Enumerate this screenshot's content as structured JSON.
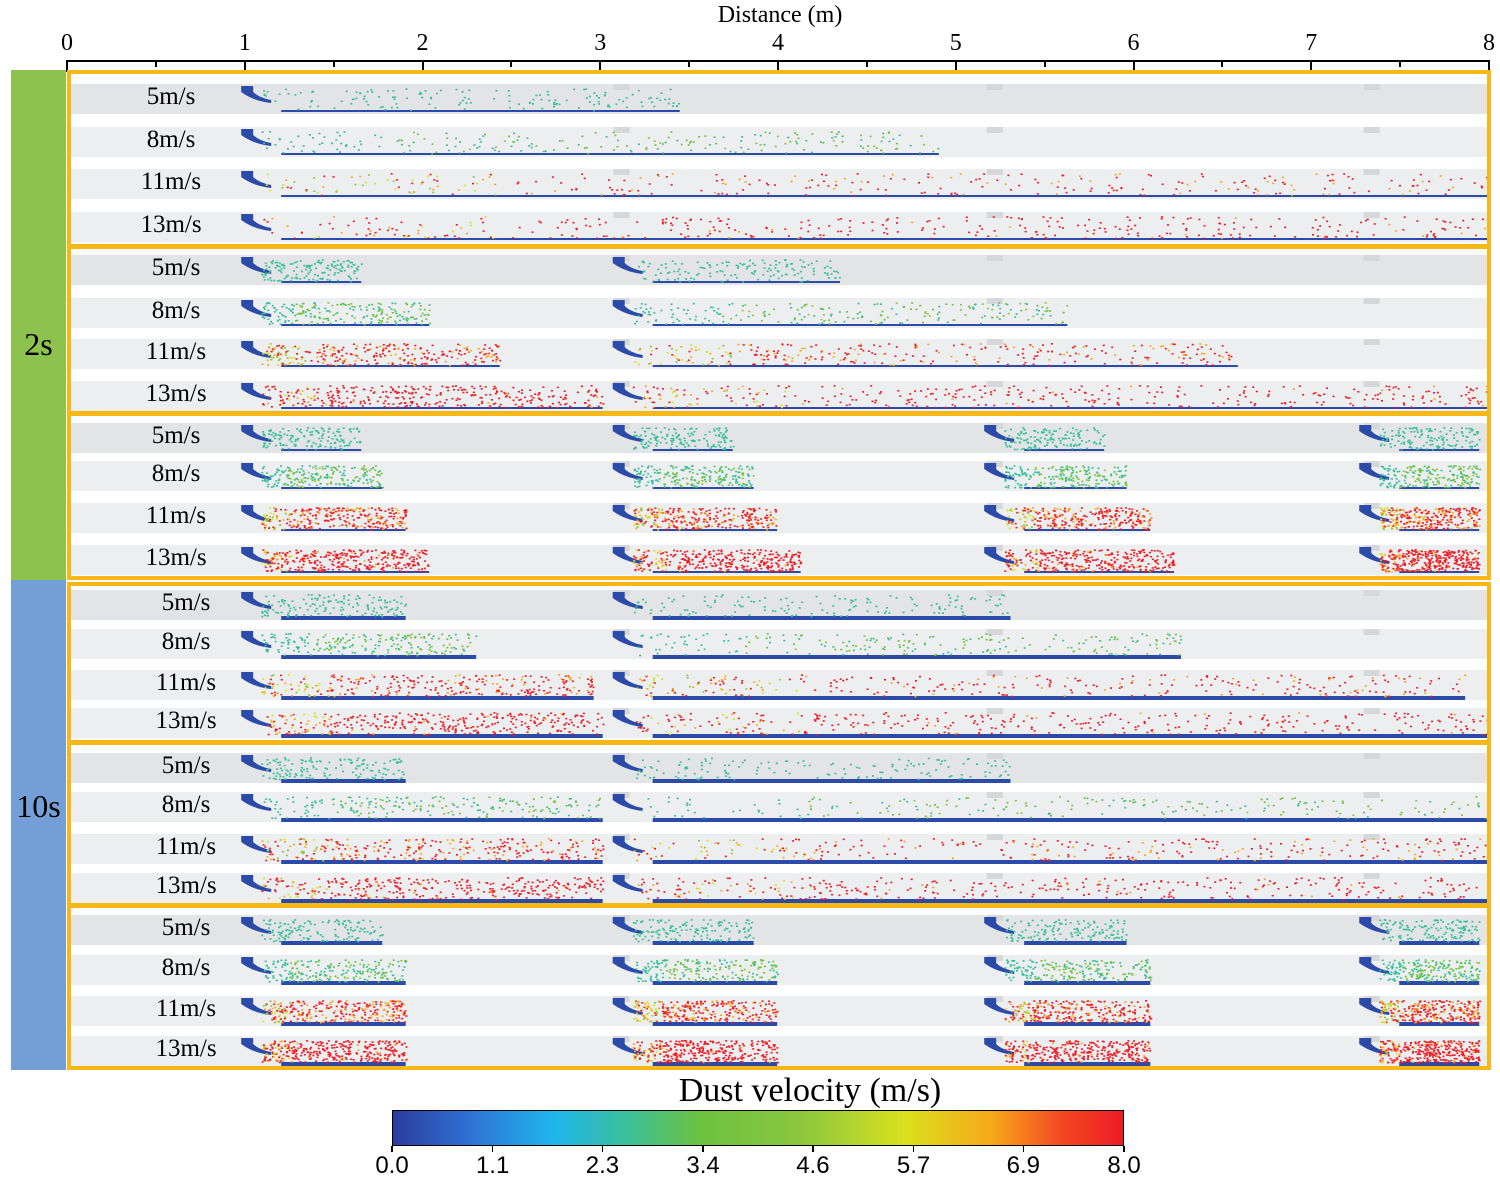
{
  "axis": {
    "title": "Distance (m)",
    "ticks": [
      "0",
      "1",
      "2",
      "3",
      "4",
      "5",
      "6",
      "7",
      "8"
    ],
    "range": [
      0,
      8
    ]
  },
  "time_groups": [
    {
      "label": "2s",
      "color": "#8dc24f"
    },
    {
      "label": "10s",
      "color": "#739fd6"
    }
  ],
  "box_color": "#f7b716",
  "row_labels": [
    "5m/s",
    "8m/s",
    "11m/s",
    "13m/s",
    "5m/s",
    "8m/s",
    "11m/s",
    "13m/s",
    "5m/s",
    "8m/s",
    "11m/s",
    "13m/s",
    "5m/s",
    "8m/s",
    "11m/s",
    "13m/s",
    "5m/s",
    "8m/s",
    "11m/s",
    "13m/s",
    "5m/s",
    "8m/s",
    "11m/s",
    "13m/s"
  ],
  "colorbar": {
    "title": "Dust velocity (m/s)",
    "ticks": [
      "0.0",
      "1.1",
      "2.3",
      "3.4",
      "4.6",
      "5.7",
      "6.9",
      "8.0"
    ],
    "range": [
      0,
      8
    ]
  }
}
